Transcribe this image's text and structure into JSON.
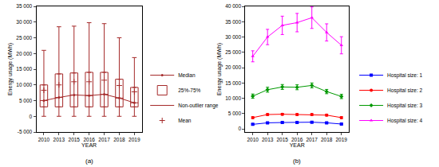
{
  "chart_data": [
    {
      "type": "box",
      "xlabel": "YEAR",
      "ylabel": "Energy usage (MWh)",
      "annotation": "(a)",
      "categories": [
        "2010",
        "2013",
        "2015",
        "2016",
        "2017",
        "2018",
        "2019"
      ],
      "ylim": [
        -5000,
        35000
      ],
      "yticks": [
        {
          "value": -5000,
          "label": "-5 000"
        },
        0,
        {
          "value": 5000,
          "label": "5 000"
        },
        {
          "value": 10000,
          "label": "10 000"
        },
        {
          "value": 15000,
          "label": "15 000"
        },
        {
          "value": 20000,
          "label": "20 000"
        },
        {
          "value": 25000,
          "label": "25 000"
        },
        {
          "value": 30000,
          "label": "30 000"
        },
        {
          "value": 35000,
          "label": "35 000"
        }
      ],
      "grid": false,
      "legend": "lower right",
      "color": "#a52a2a",
      "series": [
        {
          "name": "Median",
          "type": "line",
          "marker": "circle",
          "values": [
            5000,
            6000,
            6800,
            6600,
            7000,
            5800,
            4300
          ]
        },
        {
          "name": "25%-75%",
          "type": "box",
          "q1": [
            3000,
            3000,
            3000,
            3000,
            3000,
            3000,
            3000
          ],
          "q3": [
            10000,
            13500,
            13800,
            14000,
            14000,
            11800,
            9200
          ]
        },
        {
          "name": "Non-outlier range",
          "type": "whisker",
          "min": [
            0,
            0,
            0,
            0,
            0,
            0,
            0
          ],
          "max": [
            21000,
            28500,
            28700,
            29800,
            29500,
            25000,
            18700
          ]
        },
        {
          "name": "Mean",
          "type": "scatter",
          "marker": "cross",
          "values": [
            8300,
            10000,
            11000,
            11000,
            11500,
            9800,
            7800
          ]
        }
      ]
    },
    {
      "type": "line",
      "xlabel": "YEAR",
      "ylabel": "Energy usage (MWh)",
      "annotation": "(b)",
      "categories": [
        "2010",
        "2013",
        "2015",
        "2016",
        "2017",
        "2018",
        "2019"
      ],
      "ylim": [
        -1000,
        40000
      ],
      "yticks": [
        0,
        {
          "value": 5000,
          "label": "5 000"
        },
        {
          "value": 10000,
          "label": "10 000"
        },
        {
          "value": 15000,
          "label": "15 000"
        },
        {
          "value": 20000,
          "label": "20 000"
        },
        {
          "value": 25000,
          "label": "25 000"
        },
        {
          "value": 30000,
          "label": "30 000"
        },
        {
          "value": 35000,
          "label": "35 000"
        },
        {
          "value": 40000,
          "label": "40 000"
        }
      ],
      "grid": false,
      "legend": "lower right",
      "series": [
        {
          "name": "Hospital size: 1",
          "color": "#0000ff",
          "marker": "square",
          "values": [
            1500,
            2000,
            2100,
            2100,
            2200,
            2000,
            1600
          ],
          "error": [
            200,
            200,
            200,
            200,
            200,
            200,
            200
          ]
        },
        {
          "name": "Hospital size: 2",
          "color": "#ff0000",
          "marker": "circle",
          "values": [
            3700,
            4700,
            4800,
            4700,
            4700,
            4500,
            3700
          ],
          "error": [
            300,
            300,
            300,
            300,
            300,
            300,
            300
          ]
        },
        {
          "name": "Hospital size: 3",
          "color": "#009900",
          "marker": "diamond",
          "values": [
            10700,
            12800,
            13700,
            13600,
            14200,
            12200,
            10600
          ],
          "error": [
            700,
            800,
            800,
            800,
            800,
            700,
            700
          ]
        },
        {
          "name": "Hospital size: 4",
          "color": "#ff00ff",
          "marker": "triangle",
          "values": [
            23700,
            30000,
            33800,
            34700,
            36300,
            31500,
            27300
          ],
          "error": [
            1800,
            2500,
            3000,
            3000,
            3500,
            2800,
            2800
          ]
        }
      ]
    }
  ]
}
